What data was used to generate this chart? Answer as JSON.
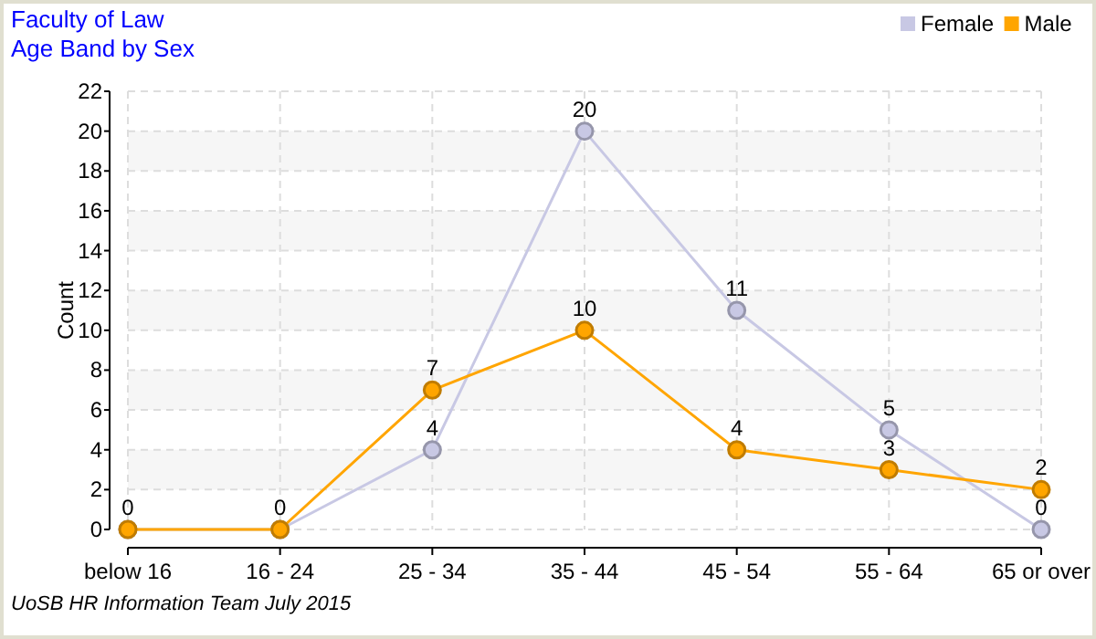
{
  "chart_data": {
    "type": "line",
    "title": "Faculty of Law",
    "subtitle": "Age Band by Sex",
    "ylabel": "Count",
    "categories": [
      "below 16",
      "16 - 24",
      "25 - 34",
      "35 - 44",
      "45 - 54",
      "55 - 64",
      "65 or over"
    ],
    "series": [
      {
        "name": "Female",
        "color": "#c8c8e4",
        "values": [
          0,
          0,
          4,
          20,
          11,
          5,
          0
        ],
        "value_labels": [
          "0",
          "0",
          "4",
          "20",
          "11",
          "5",
          "0"
        ]
      },
      {
        "name": "Male",
        "color": "#ffa500",
        "values": [
          0,
          0,
          7,
          10,
          4,
          3,
          2
        ],
        "value_labels": [
          null,
          null,
          "7",
          "10",
          "4",
          "3",
          "2"
        ]
      }
    ],
    "ylim": [
      0,
      22
    ],
    "yticks": [
      0,
      2,
      4,
      6,
      8,
      10,
      12,
      14,
      16,
      18,
      20,
      22
    ],
    "grid": true,
    "legend": "top right",
    "marker": "circle",
    "annotations": [
      "UoSB HR Information Team July 2015"
    ]
  }
}
